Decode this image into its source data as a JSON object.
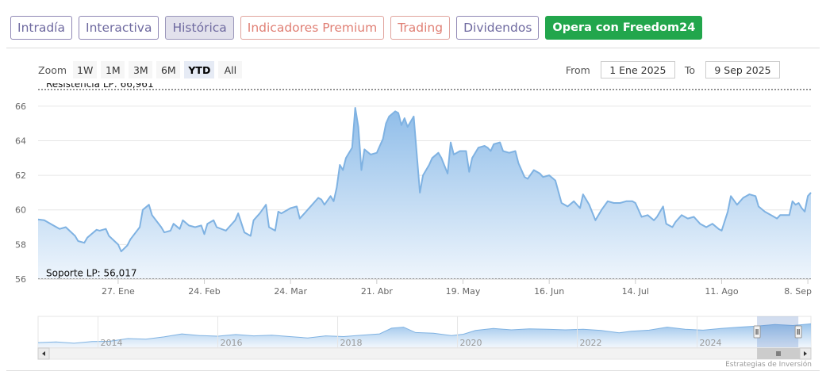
{
  "tabs": [
    {
      "label": "Intradía",
      "style": "blue"
    },
    {
      "label": "Interactiva",
      "style": "blue"
    },
    {
      "label": "Histórica",
      "style": "active"
    },
    {
      "label": "Indicadores Premium",
      "style": "red"
    },
    {
      "label": "Trading",
      "style": "red"
    },
    {
      "label": "Dividendos",
      "style": "blue"
    },
    {
      "label": "Opera con Freedom24",
      "style": "cta"
    }
  ],
  "zoom": {
    "label": "Zoom",
    "buttons": [
      "1W",
      "1M",
      "3M",
      "6M",
      "YTD",
      "All"
    ],
    "active": "YTD"
  },
  "range": {
    "from_label": "From",
    "from_value": "1 Ene 2025",
    "to_label": "To",
    "to_value": "9 Sep 2025"
  },
  "credits": "Estrategias de Inversión",
  "colors": {
    "series_line": "#7fb2e2",
    "series_fill_top": "#8fbde9",
    "series_fill_bottom": "#eef5fc",
    "plotline": "#333333",
    "cta": "#22a64c",
    "tab_text": "#6f6aa0",
    "tab_red_text": "#e07f74"
  },
  "navigator": {
    "year_labels": [
      "2014",
      "2016",
      "2018",
      "2020",
      "2022",
      "2024"
    ],
    "series": [
      [
        2013.0,
        57.2
      ],
      [
        2013.3,
        57.4
      ],
      [
        2013.6,
        57.0
      ],
      [
        2013.9,
        57.5
      ],
      [
        2014.2,
        57.6
      ],
      [
        2014.5,
        58.4
      ],
      [
        2014.8,
        58.2
      ],
      [
        2015.1,
        58.9
      ],
      [
        2015.4,
        59.8
      ],
      [
        2015.7,
        59.3
      ],
      [
        2016.0,
        59.1
      ],
      [
        2016.3,
        59.6
      ],
      [
        2016.6,
        59.2
      ],
      [
        2016.9,
        59.4
      ],
      [
        2017.2,
        59.0
      ],
      [
        2017.5,
        58.6
      ],
      [
        2017.8,
        59.2
      ],
      [
        2018.1,
        59.0
      ],
      [
        2018.4,
        59.4
      ],
      [
        2018.7,
        59.8
      ],
      [
        2018.9,
        61.5
      ],
      [
        2019.1,
        61.8
      ],
      [
        2019.3,
        60.2
      ],
      [
        2019.6,
        60.0
      ],
      [
        2019.9,
        59.3
      ],
      [
        2020.1,
        59.7
      ],
      [
        2020.3,
        60.8
      ],
      [
        2020.6,
        61.4
      ],
      [
        2020.9,
        61.0
      ],
      [
        2021.2,
        61.3
      ],
      [
        2021.5,
        61.2
      ],
      [
        2021.8,
        61.0
      ],
      [
        2022.1,
        61.2
      ],
      [
        2022.4,
        60.8
      ],
      [
        2022.7,
        60.1
      ],
      [
        2022.9,
        60.6
      ],
      [
        2023.2,
        60.9
      ],
      [
        2023.5,
        61.8
      ],
      [
        2023.8,
        61.2
      ],
      [
        2024.1,
        60.9
      ],
      [
        2024.4,
        61.4
      ],
      [
        2024.7,
        61.8
      ],
      [
        2025.0,
        62.1
      ],
      [
        2025.3,
        62.6
      ],
      [
        2025.6,
        62.3
      ],
      [
        2025.9,
        62.8
      ]
    ],
    "selected_range": [
      2025.0,
      2025.69
    ]
  },
  "chart_data": {
    "type": "area",
    "title": "",
    "xlabel": "",
    "ylabel": "",
    "ylim": [
      56,
      67
    ],
    "yticks": [
      56,
      58,
      60,
      62,
      64,
      66
    ],
    "xticks": [
      {
        "label": "27. Ene",
        "date": "2025-01-27"
      },
      {
        "label": "24. Feb",
        "date": "2025-02-24"
      },
      {
        "label": "24. Mar",
        "date": "2025-03-24"
      },
      {
        "label": "21. Abr",
        "date": "2025-04-21"
      },
      {
        "label": "19. May",
        "date": "2025-05-19"
      },
      {
        "label": "16. Jun",
        "date": "2025-06-16"
      },
      {
        "label": "14. Jul",
        "date": "2025-07-14"
      },
      {
        "label": "11. Ago",
        "date": "2025-08-11"
      },
      {
        "label": "8. Sep",
        "date": "2025-09-08"
      }
    ],
    "xrange": [
      "2025-01-01",
      "2025-09-09"
    ],
    "plotlines": [
      {
        "label": "Resistencia LP: 66,961",
        "value": 66.961
      },
      {
        "label": "Soporte LP: 56,017",
        "value": 56.017
      }
    ],
    "grid": true,
    "series": [
      {
        "data": [
          [
            "2025-01-01",
            59.45
          ],
          [
            "2025-01-03",
            59.4
          ],
          [
            "2025-01-06",
            59.1
          ],
          [
            "2025-01-08",
            58.9
          ],
          [
            "2025-01-10",
            59.0
          ],
          [
            "2025-01-13",
            58.5
          ],
          [
            "2025-01-14",
            58.2
          ],
          [
            "2025-01-16",
            58.1
          ],
          [
            "2025-01-17",
            58.4
          ],
          [
            "2025-01-20",
            58.85
          ],
          [
            "2025-01-21",
            58.8
          ],
          [
            "2025-01-23",
            58.9
          ],
          [
            "2025-01-24",
            58.5
          ],
          [
            "2025-01-27",
            58.0
          ],
          [
            "2025-01-28",
            57.6
          ],
          [
            "2025-01-30",
            57.95
          ],
          [
            "2025-01-31",
            58.3
          ],
          [
            "2025-02-03",
            59.0
          ],
          [
            "2025-02-04",
            60.0
          ],
          [
            "2025-02-06",
            60.3
          ],
          [
            "2025-02-07",
            59.7
          ],
          [
            "2025-02-10",
            59.0
          ],
          [
            "2025-02-11",
            58.7
          ],
          [
            "2025-02-13",
            58.8
          ],
          [
            "2025-02-14",
            59.2
          ],
          [
            "2025-02-16",
            58.9
          ],
          [
            "2025-02-17",
            59.4
          ],
          [
            "2025-02-19",
            59.1
          ],
          [
            "2025-02-21",
            59.0
          ],
          [
            "2025-02-23",
            59.1
          ],
          [
            "2025-02-24",
            58.6
          ],
          [
            "2025-02-25",
            59.2
          ],
          [
            "2025-02-27",
            59.4
          ],
          [
            "2025-02-28",
            59.0
          ],
          [
            "2025-03-03",
            58.8
          ],
          [
            "2025-03-04",
            59.0
          ],
          [
            "2025-03-06",
            59.4
          ],
          [
            "2025-03-07",
            59.8
          ],
          [
            "2025-03-09",
            58.7
          ],
          [
            "2025-03-11",
            58.5
          ],
          [
            "2025-03-12",
            59.4
          ],
          [
            "2025-03-14",
            59.8
          ],
          [
            "2025-03-16",
            60.3
          ],
          [
            "2025-03-17",
            59.0
          ],
          [
            "2025-03-19",
            58.8
          ],
          [
            "2025-03-20",
            59.9
          ],
          [
            "2025-03-21",
            59.8
          ],
          [
            "2025-03-24",
            60.1
          ],
          [
            "2025-03-26",
            60.2
          ],
          [
            "2025-03-27",
            59.5
          ],
          [
            "2025-03-28",
            59.7
          ],
          [
            "2025-03-31",
            60.3
          ],
          [
            "2025-04-02",
            60.7
          ],
          [
            "2025-04-03",
            60.6
          ],
          [
            "2025-04-04",
            60.3
          ],
          [
            "2025-04-06",
            60.8
          ],
          [
            "2025-04-07",
            60.5
          ],
          [
            "2025-04-08",
            61.3
          ],
          [
            "2025-04-09",
            62.6
          ],
          [
            "2025-04-10",
            62.3
          ],
          [
            "2025-04-11",
            63.0
          ],
          [
            "2025-04-13",
            63.6
          ],
          [
            "2025-04-14",
            65.9
          ],
          [
            "2025-04-15",
            64.8
          ],
          [
            "2025-04-16",
            62.3
          ],
          [
            "2025-04-17",
            63.5
          ],
          [
            "2025-04-19",
            63.2
          ],
          [
            "2025-04-21",
            63.3
          ],
          [
            "2025-04-22",
            63.7
          ],
          [
            "2025-04-23",
            64.1
          ],
          [
            "2025-04-24",
            65.0
          ],
          [
            "2025-04-25",
            65.4
          ],
          [
            "2025-04-27",
            65.7
          ],
          [
            "2025-04-28",
            65.6
          ],
          [
            "2025-04-29",
            64.9
          ],
          [
            "2025-04-30",
            65.3
          ],
          [
            "2025-05-01",
            64.8
          ],
          [
            "2025-05-03",
            65.4
          ],
          [
            "2025-05-05",
            61.0
          ],
          [
            "2025-05-06",
            62.0
          ],
          [
            "2025-05-08",
            62.6
          ],
          [
            "2025-05-09",
            63.0
          ],
          [
            "2025-05-11",
            63.3
          ],
          [
            "2025-05-12",
            63.0
          ],
          [
            "2025-05-14",
            62.1
          ],
          [
            "2025-05-15",
            63.9
          ],
          [
            "2025-05-16",
            63.2
          ],
          [
            "2025-05-18",
            63.4
          ],
          [
            "2025-05-20",
            63.4
          ],
          [
            "2025-05-21",
            62.2
          ],
          [
            "2025-05-22",
            63.0
          ],
          [
            "2025-05-24",
            63.6
          ],
          [
            "2025-05-26",
            63.7
          ],
          [
            "2025-05-27",
            63.6
          ],
          [
            "2025-05-28",
            63.4
          ],
          [
            "2025-05-29",
            63.8
          ],
          [
            "2025-05-31",
            63.9
          ],
          [
            "2025-06-01",
            63.4
          ],
          [
            "2025-06-03",
            63.3
          ],
          [
            "2025-06-05",
            63.4
          ],
          [
            "2025-06-06",
            62.7
          ],
          [
            "2025-06-08",
            61.9
          ],
          [
            "2025-06-09",
            61.8
          ],
          [
            "2025-06-11",
            62.3
          ],
          [
            "2025-06-13",
            62.1
          ],
          [
            "2025-06-14",
            61.9
          ],
          [
            "2025-06-16",
            62.0
          ],
          [
            "2025-06-18",
            61.7
          ],
          [
            "2025-06-20",
            60.4
          ],
          [
            "2025-06-22",
            60.2
          ],
          [
            "2025-06-24",
            60.5
          ],
          [
            "2025-06-26",
            60.1
          ],
          [
            "2025-06-27",
            60.9
          ],
          [
            "2025-06-29",
            60.3
          ],
          [
            "2025-07-01",
            59.4
          ],
          [
            "2025-07-03",
            60.0
          ],
          [
            "2025-07-05",
            60.5
          ],
          [
            "2025-07-07",
            60.4
          ],
          [
            "2025-07-09",
            60.4
          ],
          [
            "2025-07-11",
            60.5
          ],
          [
            "2025-07-13",
            60.5
          ],
          [
            "2025-07-14",
            60.4
          ],
          [
            "2025-07-16",
            59.6
          ],
          [
            "2025-07-18",
            59.7
          ],
          [
            "2025-07-20",
            59.4
          ],
          [
            "2025-07-21",
            59.6
          ],
          [
            "2025-07-23",
            60.2
          ],
          [
            "2025-07-24",
            59.2
          ],
          [
            "2025-07-26",
            59.0
          ],
          [
            "2025-07-27",
            59.3
          ],
          [
            "2025-07-29",
            59.7
          ],
          [
            "2025-07-31",
            59.5
          ],
          [
            "2025-08-02",
            59.6
          ],
          [
            "2025-08-04",
            59.2
          ],
          [
            "2025-08-06",
            59.0
          ],
          [
            "2025-08-08",
            59.2
          ],
          [
            "2025-08-10",
            58.9
          ],
          [
            "2025-08-11",
            58.8
          ],
          [
            "2025-08-13",
            59.9
          ],
          [
            "2025-08-14",
            60.8
          ],
          [
            "2025-08-16",
            60.3
          ],
          [
            "2025-08-18",
            60.7
          ],
          [
            "2025-08-20",
            60.9
          ],
          [
            "2025-08-22",
            60.8
          ],
          [
            "2025-08-23",
            60.2
          ],
          [
            "2025-08-25",
            59.9
          ],
          [
            "2025-08-27",
            59.7
          ],
          [
            "2025-08-29",
            59.5
          ],
          [
            "2025-08-30",
            59.7
          ],
          [
            "2025-09-01",
            59.7
          ],
          [
            "2025-09-02",
            59.7
          ],
          [
            "2025-09-03",
            60.5
          ],
          [
            "2025-09-04",
            60.3
          ],
          [
            "2025-09-05",
            60.4
          ],
          [
            "2025-09-06",
            60.1
          ],
          [
            "2025-09-07",
            59.9
          ],
          [
            "2025-09-08",
            60.8
          ],
          [
            "2025-09-09",
            61.0
          ]
        ]
      }
    ]
  }
}
